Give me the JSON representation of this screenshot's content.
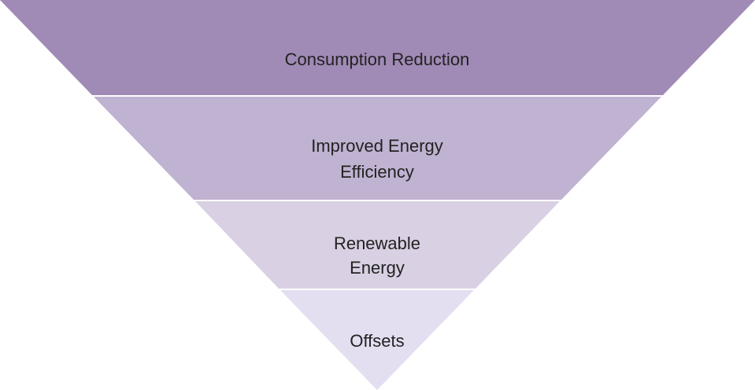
{
  "levels": [
    {
      "lines": [
        "Consumption Reduction"
      ]
    },
    {
      "lines": [
        "Improved Energy",
        "Efficiency"
      ]
    },
    {
      "lines": [
        "Renewable",
        "Energy"
      ]
    },
    {
      "lines": [
        "Offsets"
      ]
    }
  ]
}
